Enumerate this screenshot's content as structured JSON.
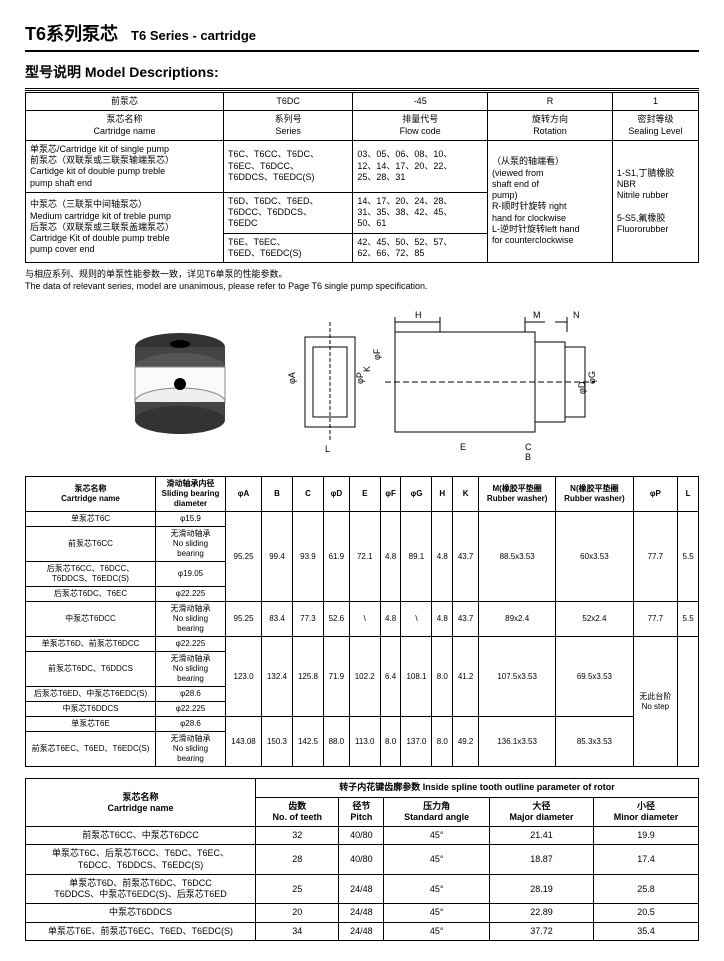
{
  "header": {
    "title_cn": "T6系列泵芯",
    "title_en": "T6 Series - cartridge",
    "section": "型号说明  Model Descriptions:"
  },
  "model_table": {
    "head_row1": {
      "c1": "前泵芯",
      "c2": "T6DC",
      "c3": "-45",
      "c4": "R",
      "c5": "1"
    },
    "head_row2": {
      "c1": "泵芯名称\nCartridge name",
      "c2": "系列号\nSeries",
      "c3": "排量代号\nFlow code",
      "c4": "旋转方向\nRotation",
      "c5": "密封等级\nSealing Level"
    },
    "r1": {
      "c1": "单泵芯/Cartridge kit of single pump\n前泵芯（双联泵或三联泵输端泵芯）\nCartidge kit of double pump treble\npump shaft end",
      "c2": "T6C、T6CC、T6DC、\nT6EC、T6DCC、\nT6DDCS、T6EDC(S)",
      "c3": "03、05、06、08、10、\n12、14、17、20、22、\n25、28、31",
      "c4": "（从泵的轴端看）\n(viewed from\nshaft end of\npump)\nR-顺时针旋转 right\nhand for clockwise\nL-逆时针旋转left hand\nfor counterclockwise",
      "c5": "1-S1,丁腈橡胶\nNBR\nNitrile rubber\n\n5-S5,氟橡胶\nFluororubber"
    },
    "r2": {
      "c1": "中泵芯（三联泵中间轴泵芯）\nMedium cartridge kit of treble pump\n后泵芯（双联泵或三联泵盖端泵芯）\nCartridge Kit of double pump treble\npump cover end",
      "c2": "T6D、T6DC、T6ED、\nT6DCC、T6DDCS、\nT6EDC",
      "c3": "14、17、20、24、28、\n31、35、38、42、45、\n50、61"
    },
    "r3": {
      "c2": "T6E、T6EC、\nT6ED、T6EDC(S)",
      "c3": "42、45、50、52、57、\n62、66、72、85"
    }
  },
  "note": {
    "cn": "与相应系列、规则的单泵性能参数一致，详见T6单泵的性能参数。",
    "en": "The data of relevant series, model are unanimous, please refer to Page T6 single pump specification."
  },
  "dim_table": {
    "header": {
      "c1": "泵芯名称\nCartridge name",
      "c2": "滑动轴承内径\nSliding bearing\ndiameter",
      "c3": "φA",
      "c4": "B",
      "c5": "C",
      "c6": "φD",
      "c7": "E",
      "c8": "φF",
      "c9": "φG",
      "c10": "H",
      "c11": "K",
      "c12": "M(橡胶平垫圈\nRubber washer)",
      "c13": "N(橡胶平垫圈\nRubber washer)",
      "c14": "φP",
      "c15": "L"
    },
    "rows": [
      {
        "c1": "单泵芯T6C",
        "c2": "φ15.9",
        "c3": "95.25",
        "c4": "99.4",
        "c5": "93.9",
        "c6": "61.9",
        "c7": "72.1",
        "c8": "4.8",
        "c9": "89.1",
        "c10": "4.8",
        "c11": "43.7",
        "c12": "88.5x3.53",
        "c13": "60x3.53",
        "c14": "77.7",
        "c15": "5.5",
        "span_start": true,
        "span": 4
      },
      {
        "c1": "前泵芯T6CC",
        "c2": "无滑动轴承\nNo sliding bearing"
      },
      {
        "c1": "后泵芯T6CC、T6DCC、\nT6DDCS、T6EDC(S)",
        "c2": "φ19.05"
      },
      {
        "c1": "后泵芯T6DC、T6EC",
        "c2": "φ22.225"
      },
      {
        "c1": "中泵芯T6DCC",
        "c2": "无滑动轴承\nNo sliding bearing",
        "c3": "95.25",
        "c4": "83.4",
        "c5": "77.3",
        "c6": "52.6",
        "c7": "\\",
        "c8": "4.8",
        "c9": "\\",
        "c10": "4.8",
        "c11": "43.7",
        "c12": "89x2.4",
        "c13": "52x2.4",
        "c14": "77.7",
        "c15": "5.5"
      },
      {
        "c1": "单泵芯T6D、前泵芯T6DCC",
        "c2": "φ22.225",
        "c3": "123.0",
        "c4": "132.4",
        "c5": "125.8",
        "c6": "71.9",
        "c7": "102.2",
        "c8": "6.4",
        "c9": "108.1",
        "c10": "8.0",
        "c11": "41.2",
        "c12": "107.5x3.53",
        "c13": "69.5x3.53",
        "c14": "无此台阶\nNo step",
        "c15": "",
        "span_start": true,
        "span": 4,
        "pl_span": 6
      },
      {
        "c1": "前泵芯T6DC、T6DDCS",
        "c2": "无滑动轴承\nNo sliding bearing"
      },
      {
        "c1": "后泵芯T6ED、中泵芯T6EDC(S)",
        "c2": "φ28.6"
      },
      {
        "c1": "中泵芯T6DDCS",
        "c2": "φ22.225"
      },
      {
        "c1": "单泵芯T6E",
        "c2": "φ28.6",
        "c3": "143.08",
        "c4": "150.3",
        "c5": "142.5",
        "c6": "88.0",
        "c7": "113.0",
        "c8": "8.0",
        "c9": "137.0",
        "c10": "8.0",
        "c11": "49.2",
        "c12": "136.1x3.53",
        "c13": "85.3x3.53",
        "span_start": true,
        "span": 2
      },
      {
        "c1": "前泵芯T6EC、T6ED、T6EDC(S)",
        "c2": "无滑动轴承\nNo sliding bearing"
      }
    ]
  },
  "spline_table": {
    "header": {
      "c1": "泵芯名称\nCartridge name",
      "c2": "转子内花键齿廓参数 Inside spline tooth outline parameter of rotor",
      "sub": {
        "c2": "齿数\nNo. of teeth",
        "c3": "径节\nPitch",
        "c4": "压力角\nStandard angle",
        "c5": "大径\nMajor diameter",
        "c6": "小径\nMinor diameter"
      }
    },
    "rows": [
      {
        "c1": "前泵芯T6CC、中泵芯T6DCC",
        "c2": "32",
        "c3": "40/80",
        "c4": "45°",
        "c5": "21.41",
        "c6": "19.9"
      },
      {
        "c1": "单泵芯T6C、后泵芯T6CC、T6DC、T6EC、\nT6DCC、T6DDCS、T6EDC(S)",
        "c2": "28",
        "c3": "40/80",
        "c4": "45°",
        "c5": "18.87",
        "c6": "17.4"
      },
      {
        "c1": "单泵芯T6D、前泵芯T6DC、T6DCC\nT6DDCS、中泵芯T6EDC(S)、后泵芯T6ED",
        "c2": "25",
        "c3": "24/48",
        "c4": "45°",
        "c5": "28.19",
        "c6": "25.8"
      },
      {
        "c1": "中泵芯T6DDCS",
        "c2": "20",
        "c3": "24/48",
        "c4": "45°",
        "c5": "22.89",
        "c6": "20.5"
      },
      {
        "c1": "单泵芯T6E、前泵芯T6EC、T6ED、T6EDC(S)",
        "c2": "34",
        "c3": "24/48",
        "c4": "45°",
        "c5": "37.72",
        "c6": "35.4"
      }
    ]
  }
}
